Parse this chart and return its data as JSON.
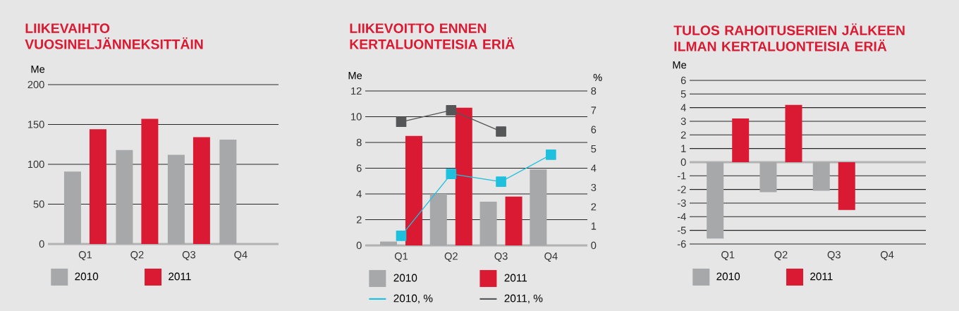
{
  "chart_data": [
    {
      "type": "bar",
      "title": "LIIKEVAIHTO VUOSINELJÄNNEKSITTÄIN",
      "ylabel": "Me",
      "categories": [
        "Q1",
        "Q2",
        "Q3",
        "Q4"
      ],
      "series": [
        {
          "name": "2010",
          "color": "#a7a8aa",
          "values": [
            91,
            118,
            112,
            131
          ]
        },
        {
          "name": "2011",
          "color": "#da1a32",
          "values": [
            144,
            157,
            134,
            null
          ]
        }
      ],
      "ylim": [
        0,
        200
      ],
      "yticks": [
        0,
        50,
        100,
        150,
        200
      ],
      "grid": "y",
      "legend": "bottom"
    },
    {
      "type": "bar",
      "title": "LIIKEVOITTO ENNEN KERTALUONTEISIA ERIÄ",
      "ylabel": "Me",
      "y2label": "%",
      "categories": [
        "Q1",
        "Q2",
        "Q3",
        "Q4"
      ],
      "series": [
        {
          "name": "2010",
          "color": "#a7a8aa",
          "values": [
            0.3,
            4.0,
            3.4,
            5.9
          ]
        },
        {
          "name": "2011",
          "color": "#da1a32",
          "values": [
            8.5,
            10.7,
            3.8,
            null
          ]
        },
        {
          "name": "2010, %",
          "type": "line",
          "axis": "y2",
          "color": "#1fc0dd",
          "values": [
            0.5,
            3.7,
            3.3,
            4.7
          ]
        },
        {
          "name": "2011, %",
          "type": "line",
          "axis": "y2",
          "color": "#555657",
          "values": [
            6.4,
            7.0,
            5.9,
            null
          ]
        }
      ],
      "ylim": [
        0,
        12
      ],
      "yticks": [
        0,
        2,
        4,
        6,
        8,
        10,
        12
      ],
      "y2lim": [
        0,
        8
      ],
      "y2ticks": [
        0,
        1,
        2,
        3,
        4,
        5,
        6,
        7,
        8
      ],
      "grid": "y",
      "legend": "bottom",
      "marker": "square"
    },
    {
      "type": "bar",
      "title": "TULOS RAHOITUSERIEN JÄLKEEN ILMAN KERTALUONTEISIA ERIÄ",
      "ylabel": "Me",
      "categories": [
        "Q1",
        "Q2",
        "Q3",
        "Q4"
      ],
      "series": [
        {
          "name": "2010",
          "color": "#a7a8aa",
          "values": [
            -5.6,
            -2.2,
            -2.1,
            null
          ]
        },
        {
          "name": "2011",
          "color": "#da1a32",
          "values": [
            3.2,
            4.2,
            -3.5,
            null
          ]
        }
      ],
      "ylim": [
        -6,
        6
      ],
      "yticks": [
        -6,
        -5,
        -4,
        -3,
        -2,
        -1,
        0,
        1,
        2,
        3,
        4,
        5,
        6
      ],
      "grid": "y",
      "legend": "bottom"
    }
  ]
}
